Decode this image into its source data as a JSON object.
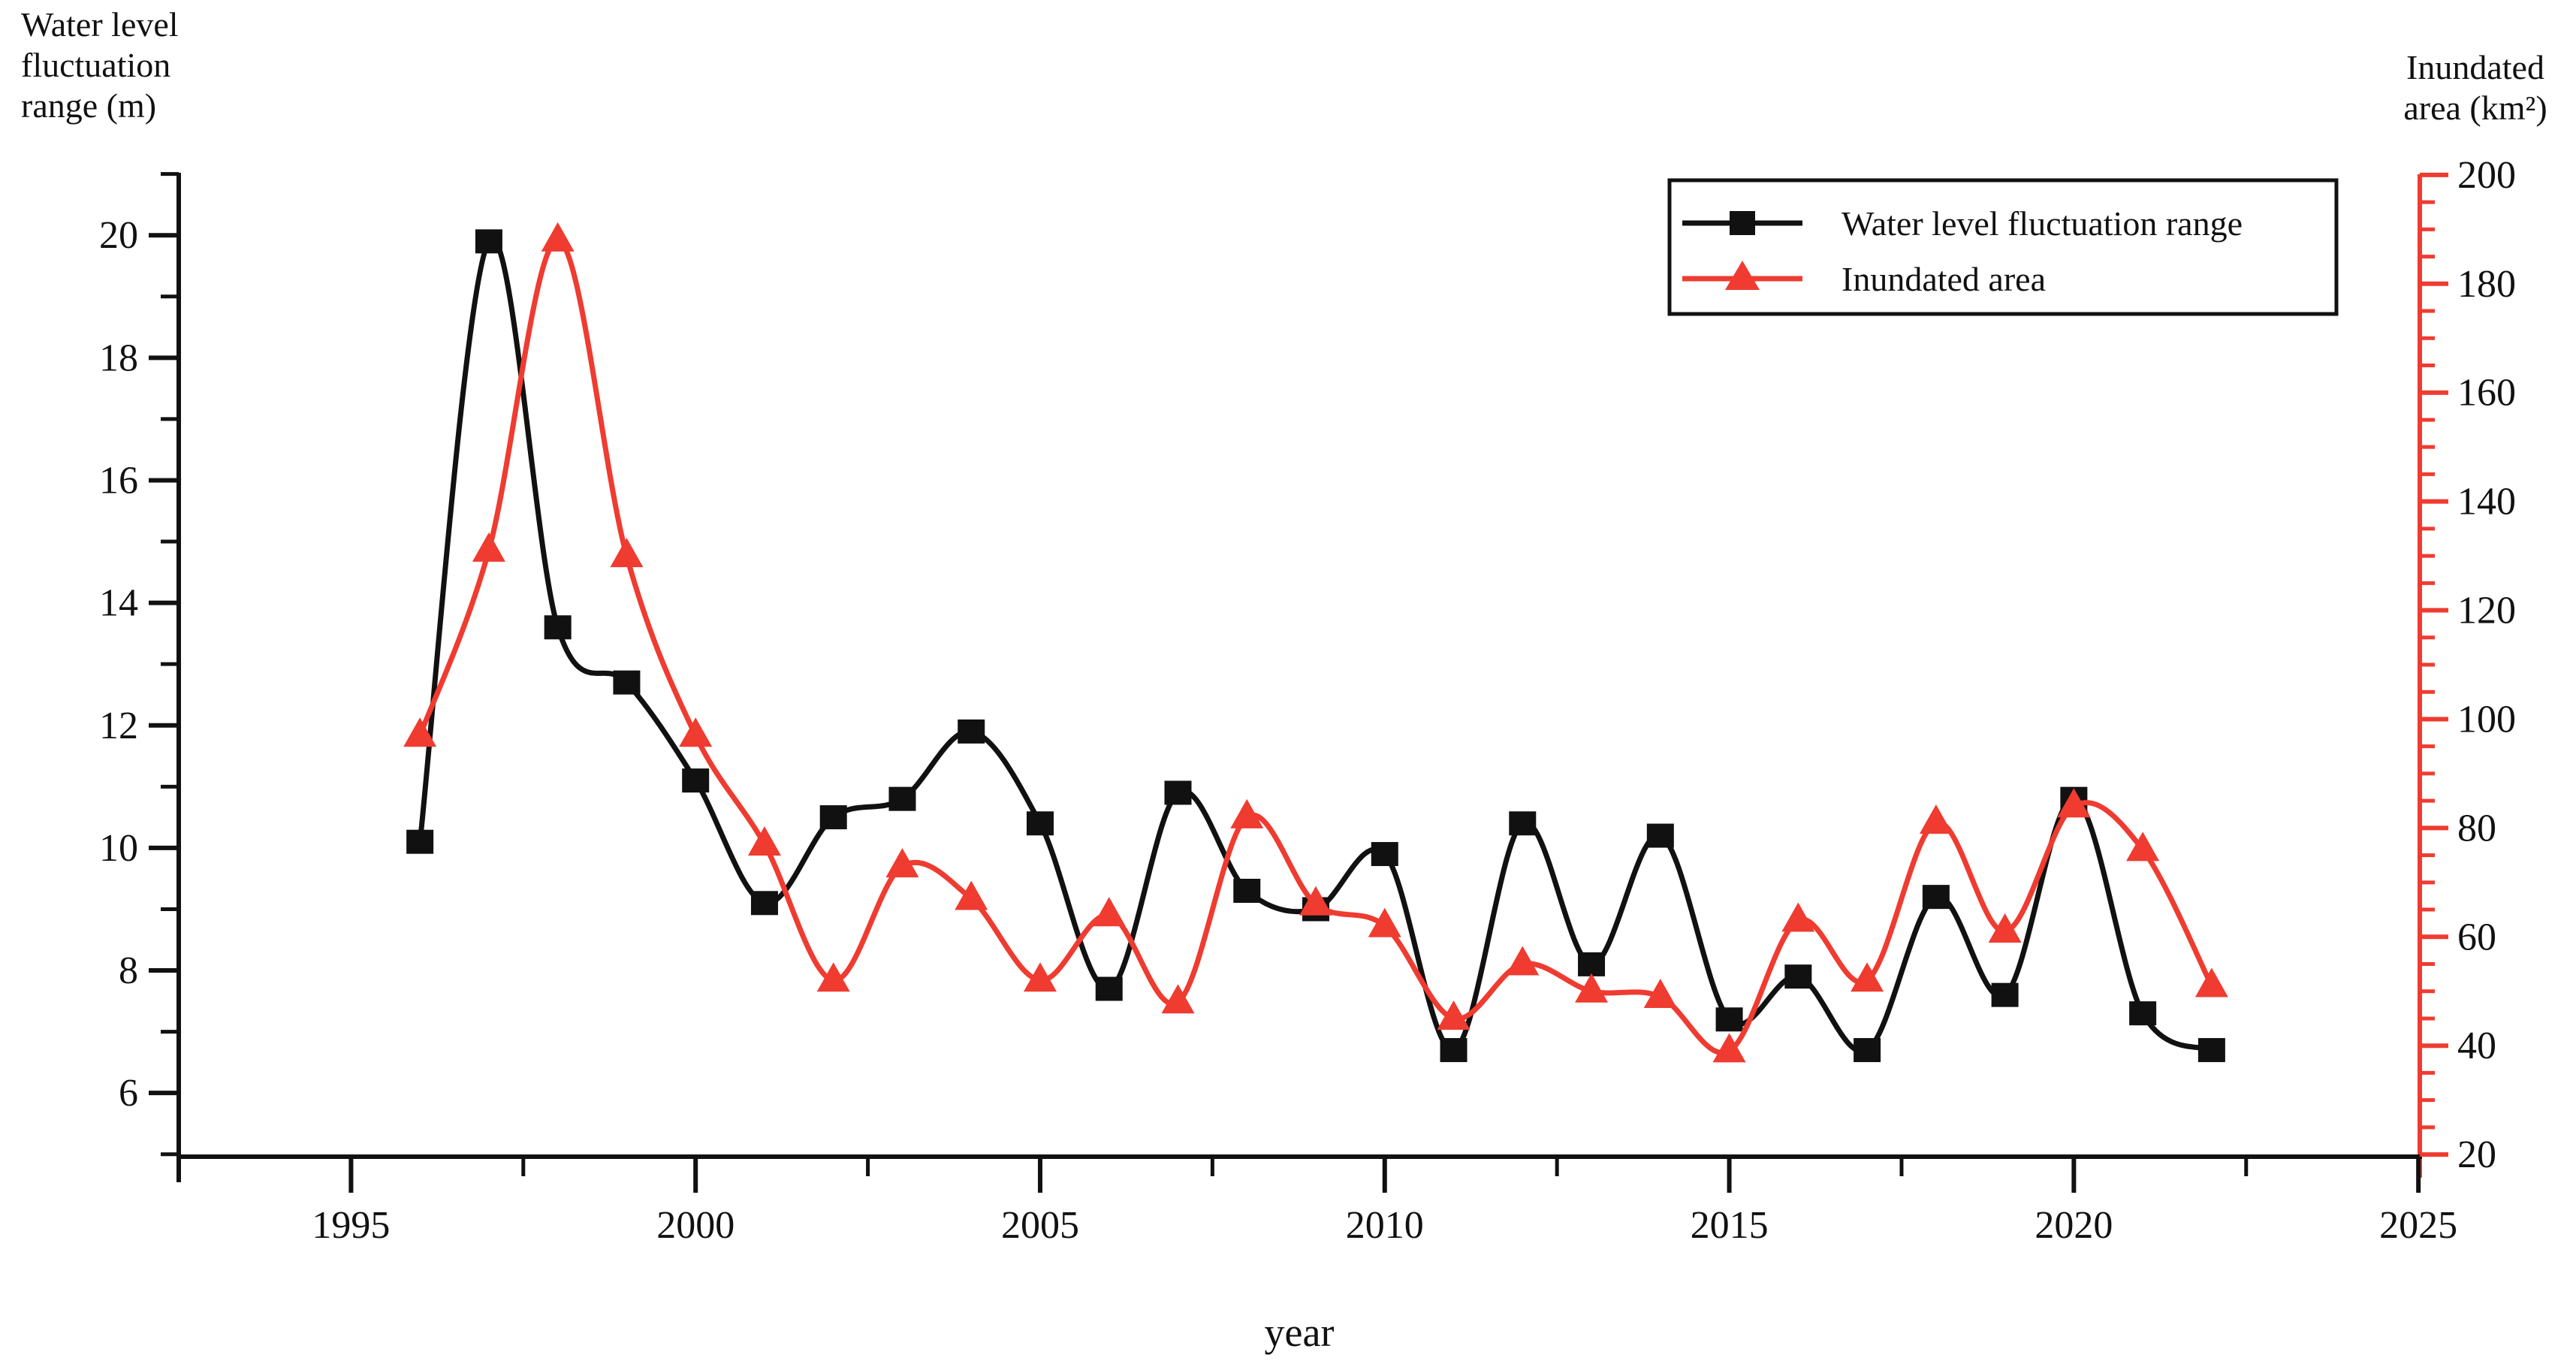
{
  "figure": {
    "left_axis_title_lines": [
      "Water level",
      "fluctuation",
      "range (m)"
    ],
    "right_axis_title_lines": [
      "Inundated",
      "area (km²)"
    ],
    "x_title": "year"
  },
  "legend": {
    "position": "top-right",
    "entries": [
      {
        "label": "Water level fluctuation range",
        "marker": "square",
        "color": "#111111"
      },
      {
        "label": "Inundated area",
        "marker": "triangle",
        "color": "#ef3b30"
      }
    ]
  },
  "chart_data": {
    "type": "line",
    "title": "",
    "xlabel": "year",
    "x": [
      1996,
      1997,
      1998,
      1999,
      2000,
      2001,
      2002,
      2003,
      2004,
      2005,
      2006,
      2007,
      2008,
      2009,
      2010,
      2011,
      2012,
      2013,
      2014,
      2015,
      2016,
      2017,
      2018,
      2019,
      2020,
      2021,
      2022
    ],
    "series": [
      {
        "name": "Water level fluctuation range",
        "axis": "left",
        "unit": "m",
        "color": "#111111",
        "marker": "square",
        "values": [
          10.1,
          19.9,
          13.6,
          12.7,
          11.1,
          9.1,
          10.5,
          10.8,
          11.9,
          10.4,
          7.7,
          10.9,
          9.3,
          9.0,
          9.9,
          6.7,
          10.4,
          8.1,
          10.2,
          7.2,
          7.9,
          6.7,
          9.2,
          7.6,
          10.8,
          7.3,
          6.7
        ]
      },
      {
        "name": "Inundated area",
        "axis": "right",
        "unit": "km²",
        "color": "#ef3b30",
        "marker": "triangle",
        "values": [
          97,
          131,
          188,
          130,
          97,
          77,
          52,
          73,
          67,
          52,
          64,
          48,
          82,
          66,
          62,
          45,
          55,
          50,
          49,
          39,
          63,
          52,
          81,
          61,
          84,
          76,
          51
        ]
      }
    ],
    "x_axis": {
      "ticks_major": [
        1995,
        2000,
        2005,
        2010,
        2015,
        2020,
        2025
      ],
      "minor_step": 2.5,
      "range": [
        1992.5,
        2025.02
      ],
      "color": "#111111"
    },
    "left_axis": {
      "label": "Water level fluctuation range (m)",
      "ticks_major": [
        6,
        8,
        10,
        12,
        14,
        16,
        18,
        20
      ],
      "minor_step": 1,
      "range": [
        4.96,
        21.02
      ],
      "color": "#111111"
    },
    "right_axis": {
      "label": "Inundated area (km²)",
      "ticks_major": [
        20,
        40,
        60,
        80,
        100,
        120,
        140,
        160,
        180,
        200
      ],
      "minor_step": 5,
      "range": [
        19.6,
        200.4
      ],
      "color": "#ef3b30"
    },
    "grid": false,
    "legend_position": "top-right"
  }
}
